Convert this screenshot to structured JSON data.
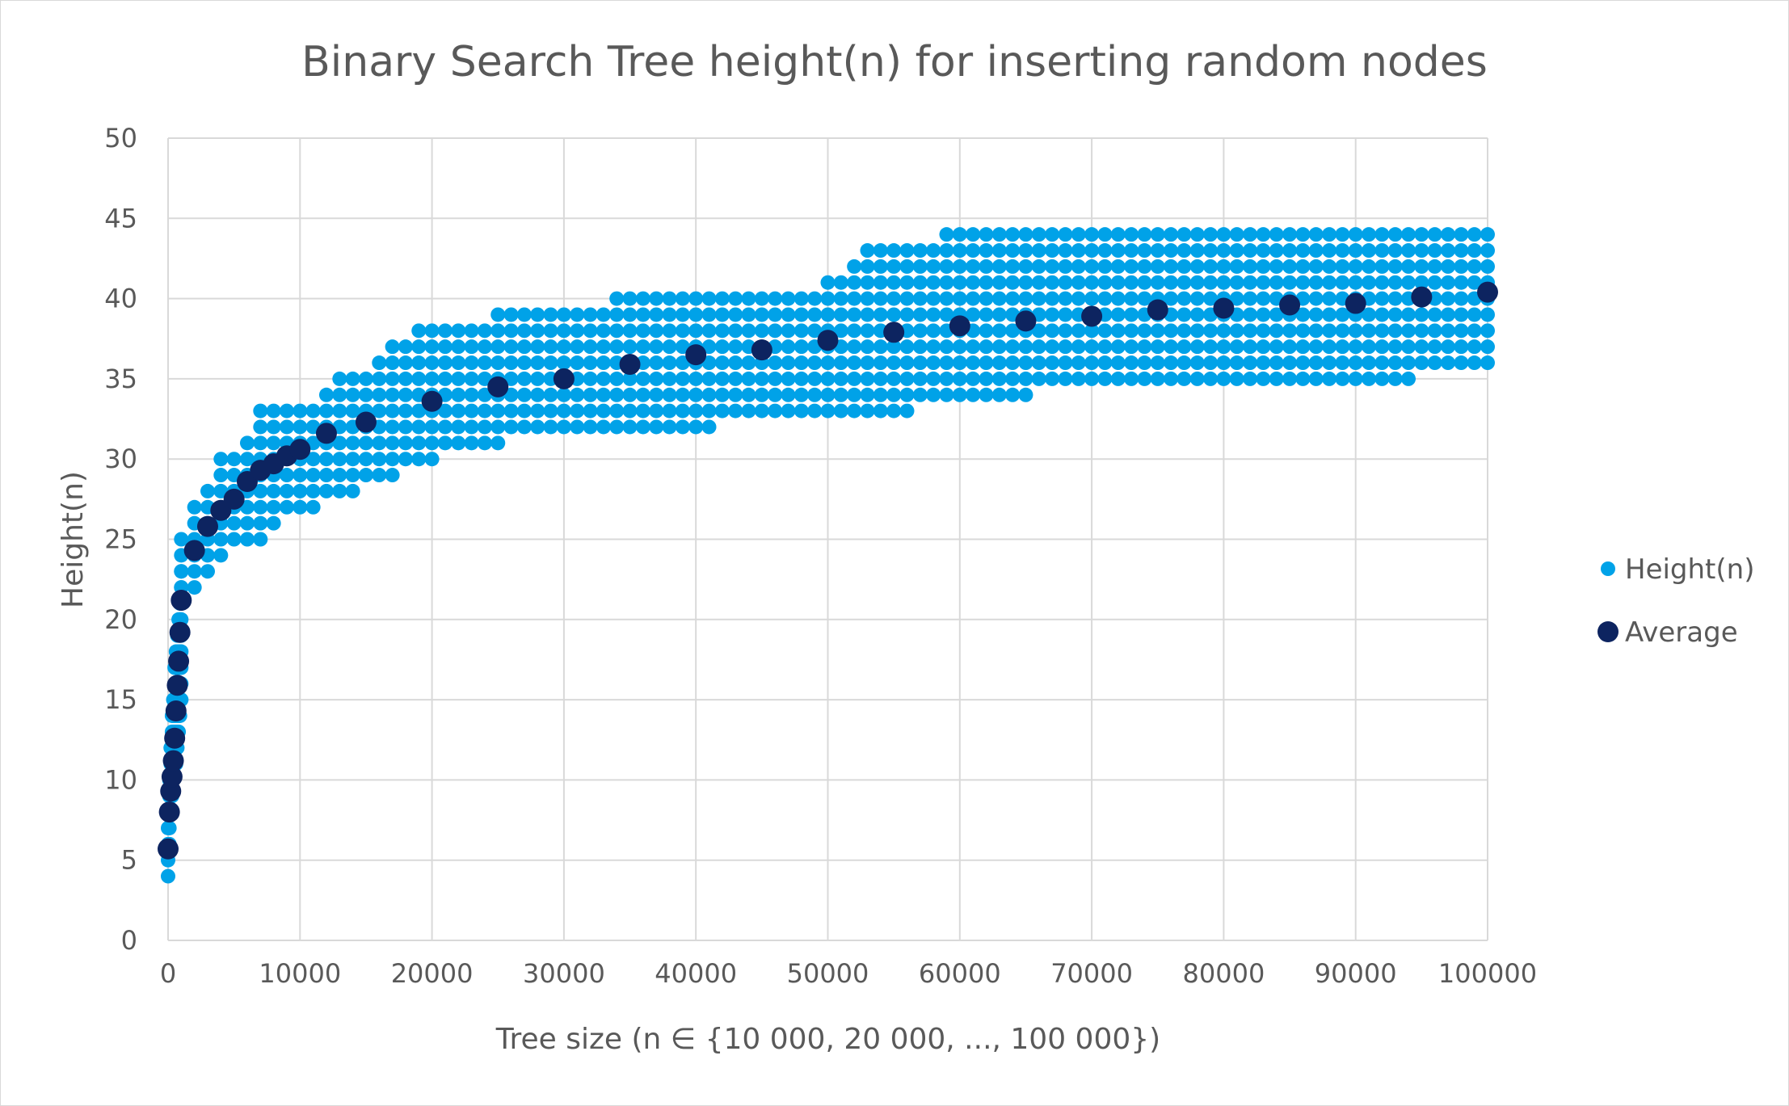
{
  "chart_data": {
    "type": "scatter",
    "title": "Binary Search Tree height(n) for inserting random nodes",
    "xlabel": "Tree size (n ∈ {10 000, 20 000, ..., 100 000})",
    "ylabel": "Height(n)",
    "xlim": [
      0,
      100000
    ],
    "ylim": [
      0,
      50
    ],
    "xticks": [
      0,
      10000,
      20000,
      30000,
      40000,
      50000,
      60000,
      70000,
      80000,
      90000,
      100000
    ],
    "yticks": [
      0,
      5,
      10,
      15,
      20,
      25,
      30,
      35,
      40,
      45,
      50
    ],
    "grid": true,
    "legend_position": "right",
    "series": [
      {
        "name": "Height(n)",
        "color": "#00a2e8",
        "marker": "small-circle",
        "ranges": [
          {
            "x": [
              0,
              1000
            ],
            "step": 100,
            "y": [
              [
                4,
                7
              ],
              [
                6,
                10
              ],
              [
                8,
                12
              ],
              [
                9,
                14
              ],
              [
                10,
                15
              ],
              [
                11,
                17
              ],
              [
                11,
                18
              ],
              [
                12,
                19
              ],
              [
                13,
                20
              ],
              [
                14,
                21
              ],
              [
                15,
                23
              ]
            ]
          },
          {
            "x": [
              1000,
              4000
            ],
            "step": 1000,
            "y": [
              [
                21,
                25
              ],
              [
                22,
                27
              ],
              [
                23,
                28
              ],
              [
                24,
                30
              ]
            ]
          },
          {
            "x": [
              5000,
              10000
            ],
            "step": 1000,
            "y": [
              [
                25,
                30
              ],
              [
                25,
                31
              ],
              [
                25,
                33
              ],
              [
                26,
                33
              ],
              [
                27,
                33
              ],
              [
                27,
                33
              ]
            ]
          },
          {
            "x": [
              11000,
              20000
            ],
            "step": 1000,
            "y": [
              [
                27,
                33
              ],
              [
                28,
                34
              ],
              [
                28,
                35
              ],
              [
                28,
                35
              ],
              [
                29,
                35
              ],
              [
                29,
                36
              ],
              [
                29,
                37
              ],
              [
                30,
                37
              ],
              [
                30,
                38
              ],
              [
                30,
                38
              ]
            ]
          },
          {
            "x": [
              21000,
              30000
            ],
            "step": 1000,
            "y": [
              [
                31,
                38
              ],
              [
                31,
                38
              ],
              [
                31,
                38
              ],
              [
                31,
                38
              ],
              [
                31,
                39
              ],
              [
                32,
                39
              ],
              [
                32,
                39
              ],
              [
                32,
                39
              ],
              [
                32,
                39
              ],
              [
                32,
                39
              ]
            ]
          },
          {
            "x": [
              31000,
              41000
            ],
            "step": 1000,
            "y": [
              [
                32,
                39
              ],
              [
                32,
                39
              ],
              [
                32,
                39
              ],
              [
                32,
                40
              ],
              [
                32,
                40
              ],
              [
                32,
                40
              ],
              [
                32,
                40
              ],
              [
                32,
                40
              ],
              [
                32,
                40
              ],
              [
                32,
                40
              ],
              [
                32,
                40
              ]
            ]
          },
          {
            "x": [
              42000,
              56000
            ],
            "step": 1000,
            "y": [
              [
                33,
                40
              ],
              [
                33,
                40
              ],
              [
                33,
                40
              ],
              [
                33,
                40
              ],
              [
                33,
                40
              ],
              [
                33,
                40
              ],
              [
                33,
                40
              ],
              [
                33,
                40
              ],
              [
                33,
                41
              ],
              [
                33,
                41
              ],
              [
                33,
                42
              ],
              [
                33,
                43
              ],
              [
                33,
                43
              ],
              [
                33,
                43
              ],
              [
                33,
                43
              ]
            ]
          },
          {
            "x": [
              57000,
              65000
            ],
            "step": 1000,
            "y": [
              [
                34,
                43
              ],
              [
                34,
                43
              ],
              [
                34,
                44
              ],
              [
                34,
                44
              ],
              [
                34,
                44
              ],
              [
                34,
                44
              ],
              [
                34,
                44
              ],
              [
                34,
                44
              ],
              [
                34,
                44
              ]
            ]
          },
          {
            "x": [
              66000,
              94000
            ],
            "step": 1000,
            "y": [
              35,
              44
            ]
          },
          {
            "x": [
              95000,
              100000
            ],
            "step": 1000,
            "y": [
              36,
              44
            ]
          }
        ]
      },
      {
        "name": "Average",
        "color": "#0d2460",
        "marker": "large-circle",
        "x": [
          0,
          100,
          200,
          300,
          400,
          500,
          600,
          700,
          800,
          900,
          1000,
          2000,
          3000,
          4000,
          5000,
          6000,
          7000,
          8000,
          9000,
          10000,
          12000,
          15000,
          20000,
          25000,
          30000,
          35000,
          40000,
          45000,
          50000,
          55000,
          60000,
          65000,
          70000,
          75000,
          80000,
          85000,
          90000,
          95000,
          100000
        ],
        "y": [
          5.7,
          8.0,
          9.3,
          10.2,
          11.2,
          12.6,
          14.3,
          15.9,
          17.4,
          19.2,
          21.2,
          24.3,
          25.8,
          26.8,
          27.5,
          28.6,
          29.3,
          29.7,
          30.2,
          30.6,
          31.6,
          32.3,
          33.6,
          34.5,
          35.0,
          35.9,
          36.5,
          36.8,
          37.4,
          37.9,
          38.3,
          38.6,
          38.9,
          39.3,
          39.4,
          39.6,
          39.7,
          40.1,
          40.4
        ]
      }
    ]
  }
}
